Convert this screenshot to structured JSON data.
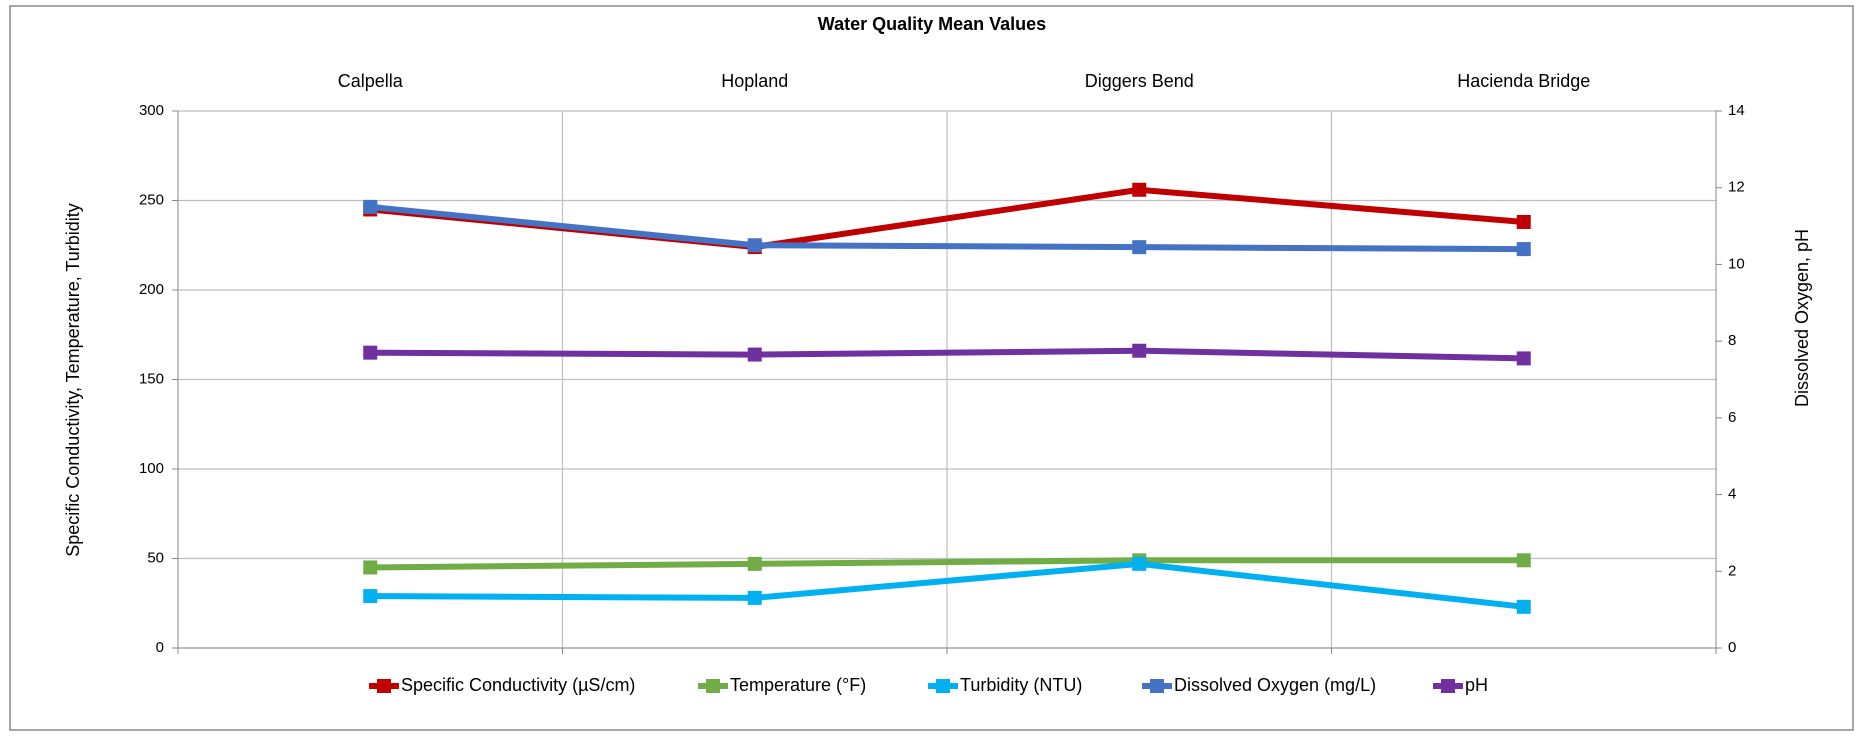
{
  "chart_data": {
    "type": "line",
    "title": "Water Quality Mean Values",
    "categories": [
      "Calpella",
      "Hopland",
      "Diggers Bend",
      "Hacienda Bridge"
    ],
    "ylabel": "Specific Conductivity, Temperature, Turbidity",
    "y2label": "Dissolved Oxygen, pH",
    "ylim": [
      0,
      300
    ],
    "yticks": [
      0,
      50,
      100,
      150,
      200,
      250,
      300
    ],
    "y2lim": [
      0,
      14
    ],
    "y2ticks": [
      0,
      2,
      4,
      6,
      8,
      10,
      12,
      14
    ],
    "grid": true,
    "legend": "bottom",
    "series": [
      {
        "name": "Specific Conductivity (µS/cm)",
        "color": "#c00000",
        "values": [
          245,
          224,
          256,
          238
        ]
      },
      {
        "name": "Temperature  (°F)",
        "color": "#70ad47",
        "values": [
          45,
          47,
          49,
          49
        ]
      },
      {
        "name": "Turbidity (NTU)",
        "color": "#00b0f0",
        "values": [
          29,
          28,
          47,
          23
        ]
      },
      {
        "name": "Dissolved Oxygen (mg/L)",
        "color": "#4472c4",
        "axis": "y2",
        "values": [
          11.5,
          10.5,
          10.45,
          10.4
        ]
      },
      {
        "name": "pH",
        "color": "#7030a0",
        "axis": "y2",
        "values": [
          7.7,
          7.65,
          7.75,
          7.55
        ]
      }
    ]
  }
}
